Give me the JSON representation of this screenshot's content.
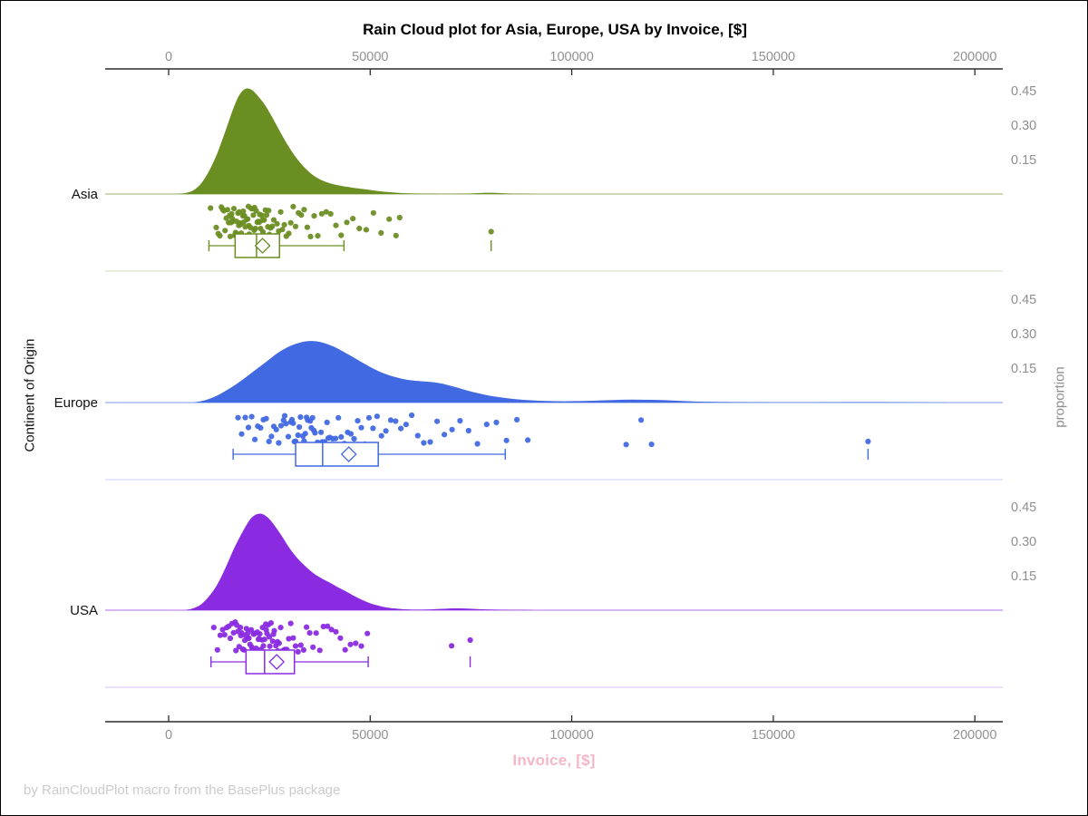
{
  "title": "Rain Cloud plot for Asia, Europe, USA by Invoice, [$]",
  "footer": "by RainCloudPlot macro from the BasePlus package",
  "x_axis": {
    "label": "Invoice, [$]",
    "ticks": [
      0,
      50000,
      100000,
      150000,
      200000
    ],
    "tick_labels": [
      "0",
      "50000",
      "100000",
      "150000",
      "200000"
    ]
  },
  "y_axis": {
    "label": "Continent of Origin"
  },
  "right_axis": {
    "label": "proportion",
    "ticks": [
      0.45,
      0.3,
      0.15
    ],
    "tick_labels": [
      "0.45",
      "0.30",
      "0.15"
    ]
  },
  "colors": {
    "axis_line": "#2b2b2b",
    "tick_label": "#919191",
    "xlabel_pink": "#f5b7c6",
    "footer_gray": "#cccccc"
  },
  "chart_data": {
    "type": "raincloud",
    "x_range": [
      0,
      200000
    ],
    "proportion_ticks": [
      0.15,
      0.3,
      0.45
    ],
    "groups": [
      {
        "label": "Asia",
        "color": "#6b8e23",
        "box": {
          "whisker_low": 10000,
          "q1": 16500,
          "median": 21800,
          "q3": 27500,
          "whisker_high": 43500,
          "mean": 23300,
          "outliers": [
            80000
          ]
        },
        "density": [
          [
            2000,
            0
          ],
          [
            4000,
            0.004
          ],
          [
            6000,
            0.015
          ],
          [
            8000,
            0.045
          ],
          [
            10000,
            0.1
          ],
          [
            12000,
            0.175
          ],
          [
            14000,
            0.27
          ],
          [
            16000,
            0.37
          ],
          [
            17500,
            0.43
          ],
          [
            19000,
            0.458
          ],
          [
            20500,
            0.455
          ],
          [
            22000,
            0.43
          ],
          [
            24000,
            0.385
          ],
          [
            26000,
            0.325
          ],
          [
            28000,
            0.26
          ],
          [
            30000,
            0.2
          ],
          [
            32000,
            0.15
          ],
          [
            34000,
            0.11
          ],
          [
            36000,
            0.08
          ],
          [
            38000,
            0.06
          ],
          [
            40000,
            0.047
          ],
          [
            43000,
            0.035
          ],
          [
            46000,
            0.027
          ],
          [
            49000,
            0.02
          ],
          [
            52000,
            0.013
          ],
          [
            55000,
            0.008
          ],
          [
            58000,
            0.004
          ],
          [
            62000,
            0.002
          ],
          [
            68000,
            0.001
          ],
          [
            74000,
            0.002
          ],
          [
            78000,
            0.005
          ],
          [
            81000,
            0.005
          ],
          [
            85000,
            0.002
          ],
          [
            90000,
            0.001
          ],
          [
            100000,
            0
          ],
          [
            205000,
            0
          ]
        ],
        "scatter_x": [
          10400,
          11800,
          12300,
          12700,
          13100,
          13400,
          13700,
          14000,
          14300,
          14600,
          14900,
          15100,
          15300,
          15500,
          15600,
          15800,
          16000,
          16200,
          16400,
          16600,
          16800,
          16900,
          17000,
          17200,
          17400,
          17500,
          17600,
          17800,
          18000,
          18200,
          18400,
          18500,
          18600,
          18800,
          19000,
          19200,
          19400,
          19600,
          19800,
          19900,
          20000,
          20200,
          20300,
          20500,
          20700,
          21000,
          21200,
          21300,
          21500,
          21700,
          22000,
          22200,
          22500,
          22600,
          22800,
          23100,
          23200,
          23400,
          23700,
          24000,
          24300,
          24600,
          24800,
          25000,
          25300,
          25700,
          26100,
          26500,
          26900,
          27300,
          27800,
          28200,
          28700,
          29200,
          29800,
          30300,
          30900,
          31500,
          32200,
          32900,
          33600,
          34400,
          35200,
          36100,
          37000,
          38000,
          39100,
          40200,
          41500,
          42800,
          44200,
          45700,
          47300,
          49000,
          50800,
          52700,
          54700,
          56400,
          57300,
          80000
        ]
      },
      {
        "label": "Europe",
        "color": "#4169e1",
        "box": {
          "whisker_low": 16000,
          "q1": 31500,
          "median": 38200,
          "q3": 52000,
          "whisker_high": 83500,
          "mean": 44700,
          "outliers": [
            173500
          ]
        },
        "density": [
          [
            6000,
            0
          ],
          [
            9000,
            0.01
          ],
          [
            12000,
            0.03
          ],
          [
            15000,
            0.06
          ],
          [
            18000,
            0.095
          ],
          [
            21000,
            0.135
          ],
          [
            24000,
            0.175
          ],
          [
            27000,
            0.215
          ],
          [
            30000,
            0.245
          ],
          [
            33000,
            0.263
          ],
          [
            35500,
            0.268
          ],
          [
            38000,
            0.262
          ],
          [
            41000,
            0.243
          ],
          [
            44000,
            0.215
          ],
          [
            47000,
            0.185
          ],
          [
            50000,
            0.155
          ],
          [
            53000,
            0.13
          ],
          [
            56000,
            0.112
          ],
          [
            59000,
            0.1
          ],
          [
            62000,
            0.094
          ],
          [
            65000,
            0.09
          ],
          [
            68000,
            0.082
          ],
          [
            71000,
            0.068
          ],
          [
            74000,
            0.053
          ],
          [
            77000,
            0.04
          ],
          [
            80000,
            0.029
          ],
          [
            84000,
            0.019
          ],
          [
            88000,
            0.012
          ],
          [
            92000,
            0.008
          ],
          [
            96000,
            0.006
          ],
          [
            100000,
            0.006
          ],
          [
            105000,
            0.008
          ],
          [
            110000,
            0.011
          ],
          [
            115000,
            0.013
          ],
          [
            120000,
            0.012
          ],
          [
            125000,
            0.009
          ],
          [
            130000,
            0.005
          ],
          [
            136000,
            0.003
          ],
          [
            142000,
            0.002
          ],
          [
            150000,
            0.001
          ],
          [
            160000,
            0.001
          ],
          [
            170000,
            0.002
          ],
          [
            176000,
            0.002
          ],
          [
            184000,
            0.001
          ],
          [
            195000,
            0
          ],
          [
            205000,
            0
          ]
        ],
        "scatter_x": [
          17200,
          18100,
          19000,
          19800,
          20600,
          21400,
          22100,
          22800,
          23500,
          24200,
          24900,
          25500,
          26100,
          26700,
          27300,
          27900,
          28500,
          28800,
          29100,
          29700,
          30300,
          30600,
          30900,
          31200,
          31500,
          32100,
          32400,
          32700,
          33300,
          33600,
          33900,
          34200,
          34500,
          35100,
          35400,
          35700,
          36000,
          36300,
          36900,
          37500,
          37800,
          38100,
          38700,
          39300,
          39600,
          40000,
          40700,
          41400,
          42100,
          42800,
          43600,
          44400,
          45200,
          46000,
          46900,
          47800,
          48700,
          49700,
          50700,
          51700,
          52800,
          53900,
          55100,
          56300,
          57600,
          58900,
          60300,
          61800,
          63300,
          64900,
          66600,
          68400,
          70300,
          72300,
          74400,
          76600,
          78900,
          81300,
          83800,
          86400,
          89100,
          113500,
          117200,
          119800,
          173500
        ]
      },
      {
        "label": "USA",
        "color": "#8a2be2",
        "box": {
          "whisker_low": 10500,
          "q1": 19200,
          "median": 23800,
          "q3": 31200,
          "whisker_high": 49500,
          "mean": 26800,
          "outliers": [
            74800
          ]
        },
        "density": [
          [
            4000,
            0
          ],
          [
            6000,
            0.008
          ],
          [
            8000,
            0.025
          ],
          [
            10000,
            0.06
          ],
          [
            12000,
            0.11
          ],
          [
            14000,
            0.18
          ],
          [
            16000,
            0.26
          ],
          [
            18000,
            0.33
          ],
          [
            20000,
            0.39
          ],
          [
            21500,
            0.415
          ],
          [
            23000,
            0.42
          ],
          [
            24500,
            0.405
          ],
          [
            26000,
            0.375
          ],
          [
            28000,
            0.325
          ],
          [
            30000,
            0.27
          ],
          [
            32000,
            0.225
          ],
          [
            34000,
            0.19
          ],
          [
            36000,
            0.16
          ],
          [
            38000,
            0.138
          ],
          [
            40000,
            0.12
          ],
          [
            42000,
            0.1
          ],
          [
            44000,
            0.082
          ],
          [
            46000,
            0.062
          ],
          [
            48000,
            0.045
          ],
          [
            50000,
            0.03
          ],
          [
            52000,
            0.02
          ],
          [
            54000,
            0.012
          ],
          [
            57000,
            0.006
          ],
          [
            60000,
            0.003
          ],
          [
            64000,
            0.003
          ],
          [
            68000,
            0.006
          ],
          [
            71000,
            0.008
          ],
          [
            74000,
            0.007
          ],
          [
            78000,
            0.004
          ],
          [
            83000,
            0.002
          ],
          [
            90000,
            0.001
          ],
          [
            100000,
            0
          ],
          [
            205000,
            0
          ]
        ],
        "scatter_x": [
          11200,
          12100,
          12800,
          13400,
          13900,
          14400,
          14900,
          15300,
          15700,
          16100,
          16500,
          16700,
          16900,
          17200,
          17500,
          17800,
          17900,
          18100,
          18400,
          18700,
          18900,
          19000,
          19300,
          19600,
          19700,
          19900,
          20200,
          20500,
          20600,
          20800,
          21100,
          21400,
          21500,
          21700,
          22000,
          22300,
          22400,
          22600,
          22900,
          23200,
          23300,
          23500,
          23800,
          24100,
          24200,
          24400,
          24700,
          25000,
          25100,
          25400,
          25800,
          26000,
          26200,
          26600,
          27000,
          27100,
          27400,
          27800,
          28300,
          28800,
          29300,
          29800,
          30300,
          30900,
          31500,
          32100,
          32800,
          33500,
          34200,
          35000,
          35800,
          36600,
          37500,
          38400,
          39400,
          40400,
          41500,
          42600,
          43800,
          45100,
          46400,
          47800,
          49300,
          70200,
          74800
        ]
      }
    ]
  }
}
